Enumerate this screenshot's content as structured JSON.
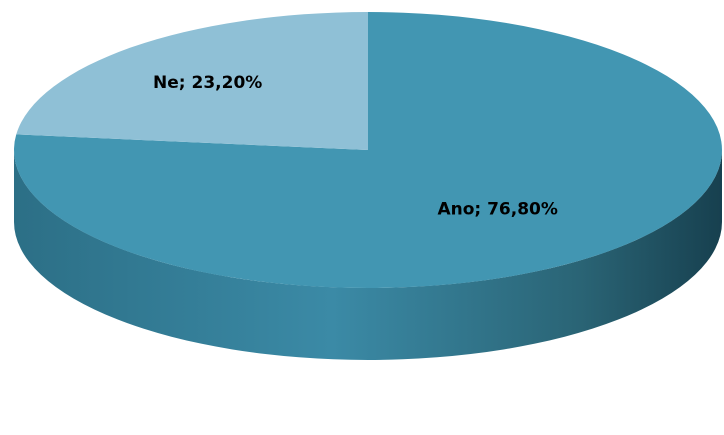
{
  "chart_data": {
    "type": "pie",
    "style": "3d",
    "categories": [
      "Ano",
      "Ne"
    ],
    "values": [
      76.8,
      23.2
    ],
    "data_labels": [
      "Ano; 76,80%",
      "Ne; 23,20%"
    ],
    "colors": {
      "Ano": "#4296b2",
      "Ne": "#8fc0d6",
      "side_light": "#3b8aa6",
      "side_dark": "#17404f",
      "label_text": "#000000"
    }
  }
}
